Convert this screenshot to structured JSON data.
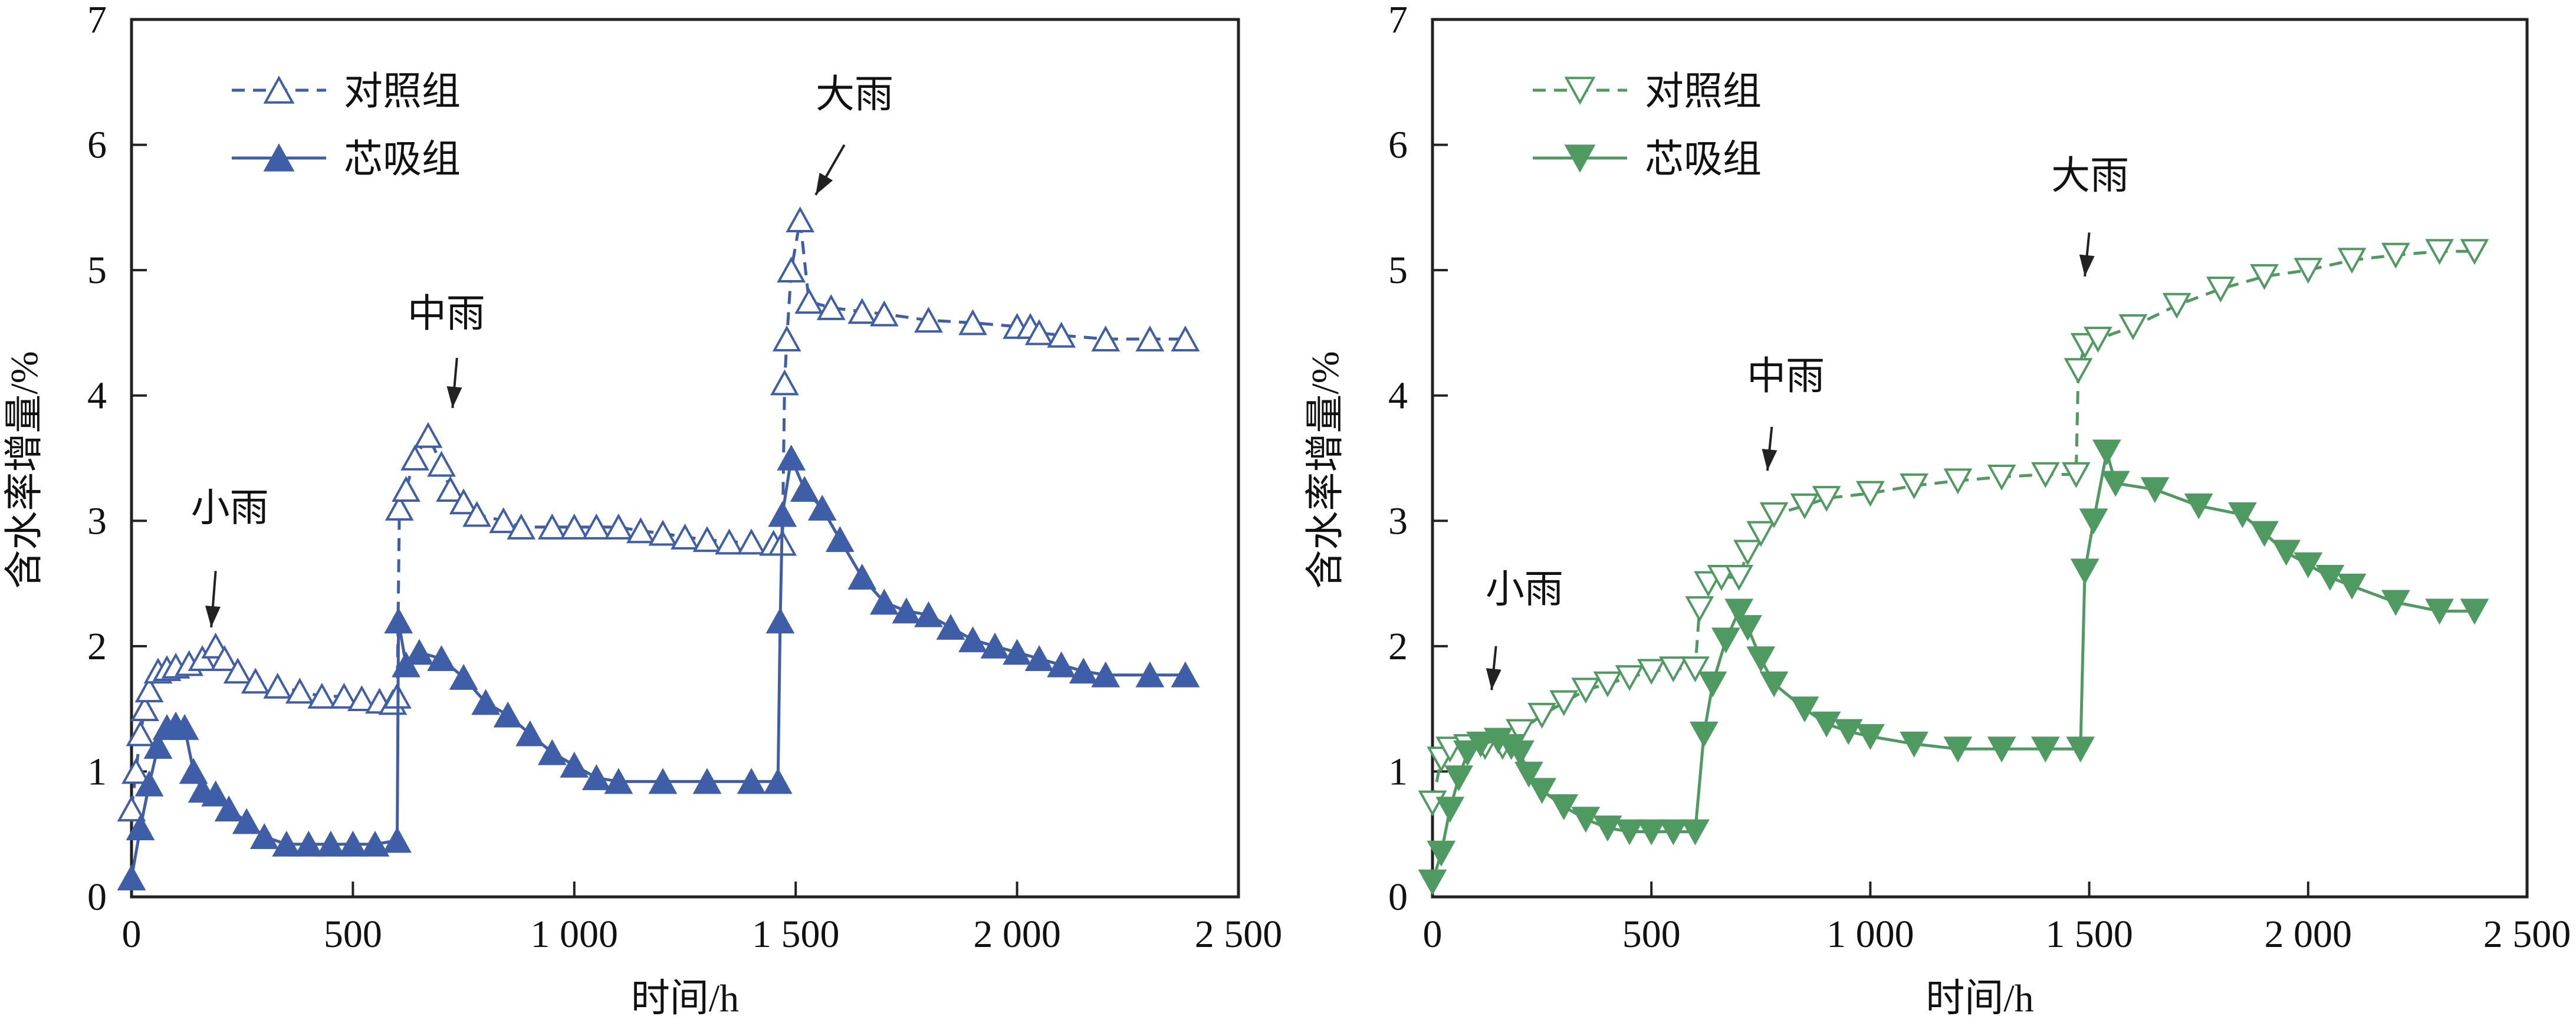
{
  "chart_data": [
    {
      "type": "line",
      "panel": "left",
      "color": "#3f5ea8",
      "xlabel": "时间/h",
      "ylabel": "含水率增量/%",
      "xlim": [
        0,
        2500
      ],
      "ylim": [
        0,
        7
      ],
      "xticks": [
        0,
        500,
        1000,
        1500,
        2000,
        2500
      ],
      "xtick_labels": [
        "0",
        "500",
        "1 000",
        "1 500",
        "2 000",
        "2 500"
      ],
      "yticks": [
        0,
        1,
        2,
        3,
        4,
        5,
        6,
        7
      ],
      "ytick_labels": [
        "0",
        "1",
        "2",
        "3",
        "4",
        "5",
        "6",
        "7"
      ],
      "grid": false,
      "legend": "top-left",
      "series": [
        {
          "name": "对照组",
          "style": "dashed",
          "marker": "triangle-up-open",
          "x": [
            0,
            10,
            20,
            30,
            40,
            60,
            80,
            100,
            130,
            160,
            190,
            210,
            240,
            280,
            330,
            380,
            430,
            480,
            520,
            560,
            590,
            600,
            605,
            620,
            640,
            670,
            700,
            720,
            750,
            780,
            840,
            880,
            950,
            1000,
            1050,
            1100,
            1150,
            1200,
            1250,
            1300,
            1350,
            1400,
            1450,
            1470,
            1475,
            1480,
            1490,
            1510,
            1530,
            1580,
            1650,
            1700,
            1800,
            1900,
            2000,
            2030,
            2050,
            2100,
            2200,
            2300,
            2380
          ],
          "y": [
            0.7,
            1.0,
            1.3,
            1.5,
            1.65,
            1.8,
            1.82,
            1.84,
            1.86,
            1.9,
            2.0,
            1.9,
            1.8,
            1.72,
            1.68,
            1.64,
            1.6,
            1.6,
            1.58,
            1.56,
            1.55,
            1.6,
            3.1,
            3.25,
            3.5,
            3.68,
            3.45,
            3.25,
            3.15,
            3.05,
            3.0,
            2.95,
            2.95,
            2.95,
            2.95,
            2.95,
            2.92,
            2.9,
            2.87,
            2.85,
            2.83,
            2.83,
            2.82,
            2.82,
            4.1,
            4.45,
            5.0,
            5.4,
            4.75,
            4.7,
            4.67,
            4.65,
            4.6,
            4.58,
            4.55,
            4.55,
            4.5,
            4.48,
            4.45,
            4.45,
            4.45
          ]
        },
        {
          "name": "芯吸组",
          "style": "solid",
          "marker": "triangle-up-filled",
          "x": [
            0,
            20,
            40,
            60,
            80,
            100,
            120,
            140,
            160,
            190,
            220,
            260,
            300,
            350,
            400,
            450,
            500,
            550,
            600,
            603,
            620,
            650,
            700,
            750,
            800,
            850,
            900,
            950,
            1000,
            1050,
            1100,
            1200,
            1300,
            1400,
            1460,
            1465,
            1470,
            1490,
            1520,
            1560,
            1600,
            1650,
            1700,
            1750,
            1800,
            1850,
            1900,
            1950,
            2000,
            2050,
            2100,
            2150,
            2200,
            2300,
            2380
          ],
          "y": [
            0.15,
            0.55,
            0.9,
            1.2,
            1.35,
            1.37,
            1.35,
            1.0,
            0.85,
            0.82,
            0.7,
            0.6,
            0.48,
            0.42,
            0.42,
            0.42,
            0.42,
            0.42,
            0.45,
            2.2,
            1.85,
            1.95,
            1.9,
            1.75,
            1.55,
            1.45,
            1.3,
            1.15,
            1.05,
            0.95,
            0.92,
            0.92,
            0.92,
            0.92,
            0.92,
            2.2,
            3.05,
            3.5,
            3.25,
            3.1,
            2.85,
            2.55,
            2.35,
            2.28,
            2.25,
            2.15,
            2.05,
            2.0,
            1.95,
            1.9,
            1.85,
            1.8,
            1.77,
            1.77,
            1.77
          ]
        }
      ],
      "annotations": [
        {
          "text": "小雨",
          "x": 222,
          "y": 3.0,
          "arrow_from": [
            190,
            2.6
          ],
          "arrow_to": [
            180,
            2.15
          ]
        },
        {
          "text": "中雨",
          "x": 711,
          "y": 4.55,
          "arrow_from": [
            735,
            4.3
          ],
          "arrow_to": [
            725,
            3.9
          ]
        },
        {
          "text": "大雨",
          "x": 1633,
          "y": 6.3,
          "arrow_from": [
            1610,
            6.0
          ],
          "arrow_to": [
            1545,
            5.6
          ]
        }
      ]
    },
    {
      "type": "line",
      "panel": "right",
      "color": "#4f9a60",
      "xlabel": "时间/h",
      "ylabel": "含水率增量/%",
      "xlim": [
        0,
        2500
      ],
      "ylim": [
        0,
        7
      ],
      "xticks": [
        0,
        500,
        1000,
        1500,
        2000,
        2500
      ],
      "xtick_labels": [
        "0",
        "500",
        "1 000",
        "1 500",
        "2 000",
        "2 500"
      ],
      "yticks": [
        0,
        1,
        2,
        3,
        4,
        5,
        6,
        7
      ],
      "ytick_labels": [
        "0",
        "1",
        "2",
        "3",
        "4",
        "5",
        "6",
        "7"
      ],
      "grid": false,
      "legend": "top-left",
      "series": [
        {
          "name": "对照组",
          "style": "dashed",
          "marker": "triangle-down-open",
          "x": [
            0,
            20,
            40,
            80,
            120,
            160,
            200,
            250,
            300,
            350,
            400,
            450,
            500,
            550,
            600,
            610,
            630,
            660,
            700,
            720,
            750,
            780,
            850,
            900,
            1000,
            1100,
            1200,
            1300,
            1400,
            1470,
            1475,
            1490,
            1520,
            1600,
            1700,
            1800,
            1900,
            2000,
            2100,
            2200,
            2300,
            2380
          ],
          "y": [
            0.75,
            1.1,
            1.18,
            1.2,
            1.2,
            1.2,
            1.32,
            1.45,
            1.55,
            1.65,
            1.7,
            1.75,
            1.8,
            1.82,
            1.82,
            2.3,
            2.5,
            2.55,
            2.55,
            2.75,
            2.9,
            3.05,
            3.12,
            3.18,
            3.22,
            3.28,
            3.32,
            3.35,
            3.37,
            3.37,
            4.2,
            4.4,
            4.45,
            4.55,
            4.72,
            4.85,
            4.95,
            5.0,
            5.08,
            5.12,
            5.15,
            5.15
          ]
        },
        {
          "name": "芯吸组",
          "style": "solid",
          "marker": "triangle-down-filled",
          "x": [
            0,
            20,
            40,
            60,
            80,
            110,
            150,
            180,
            200,
            220,
            250,
            300,
            350,
            400,
            450,
            500,
            550,
            600,
            620,
            640,
            670,
            700,
            720,
            750,
            780,
            850,
            900,
            950,
            1000,
            1100,
            1200,
            1300,
            1400,
            1480,
            1490,
            1510,
            1540,
            1560,
            1650,
            1750,
            1850,
            1900,
            1950,
            2000,
            2050,
            2100,
            2200,
            2300,
            2380
          ],
          "y": [
            0.12,
            0.35,
            0.7,
            0.95,
            1.15,
            1.22,
            1.25,
            1.2,
            1.15,
            0.98,
            0.85,
            0.72,
            0.62,
            0.55,
            0.52,
            0.52,
            0.52,
            0.52,
            1.3,
            1.7,
            2.05,
            2.28,
            2.15,
            1.9,
            1.7,
            1.5,
            1.38,
            1.32,
            1.28,
            1.22,
            1.18,
            1.18,
            1.18,
            1.18,
            2.6,
            3.0,
            3.55,
            3.3,
            3.25,
            3.12,
            3.05,
            2.9,
            2.75,
            2.65,
            2.55,
            2.48,
            2.35,
            2.28,
            2.28
          ]
        }
      ],
      "annotations": [
        {
          "text": "小雨",
          "x": 210,
          "y": 2.35,
          "arrow_from": [
            145,
            2.0
          ],
          "arrow_to": [
            135,
            1.65
          ]
        },
        {
          "text": "中雨",
          "x": 807,
          "y": 4.05,
          "arrow_from": [
            775,
            3.75
          ],
          "arrow_to": [
            765,
            3.4
          ]
        },
        {
          "text": "大雨",
          "x": 1502,
          "y": 5.65,
          "arrow_from": [
            1500,
            5.3
          ],
          "arrow_to": [
            1490,
            4.95
          ]
        }
      ]
    }
  ]
}
